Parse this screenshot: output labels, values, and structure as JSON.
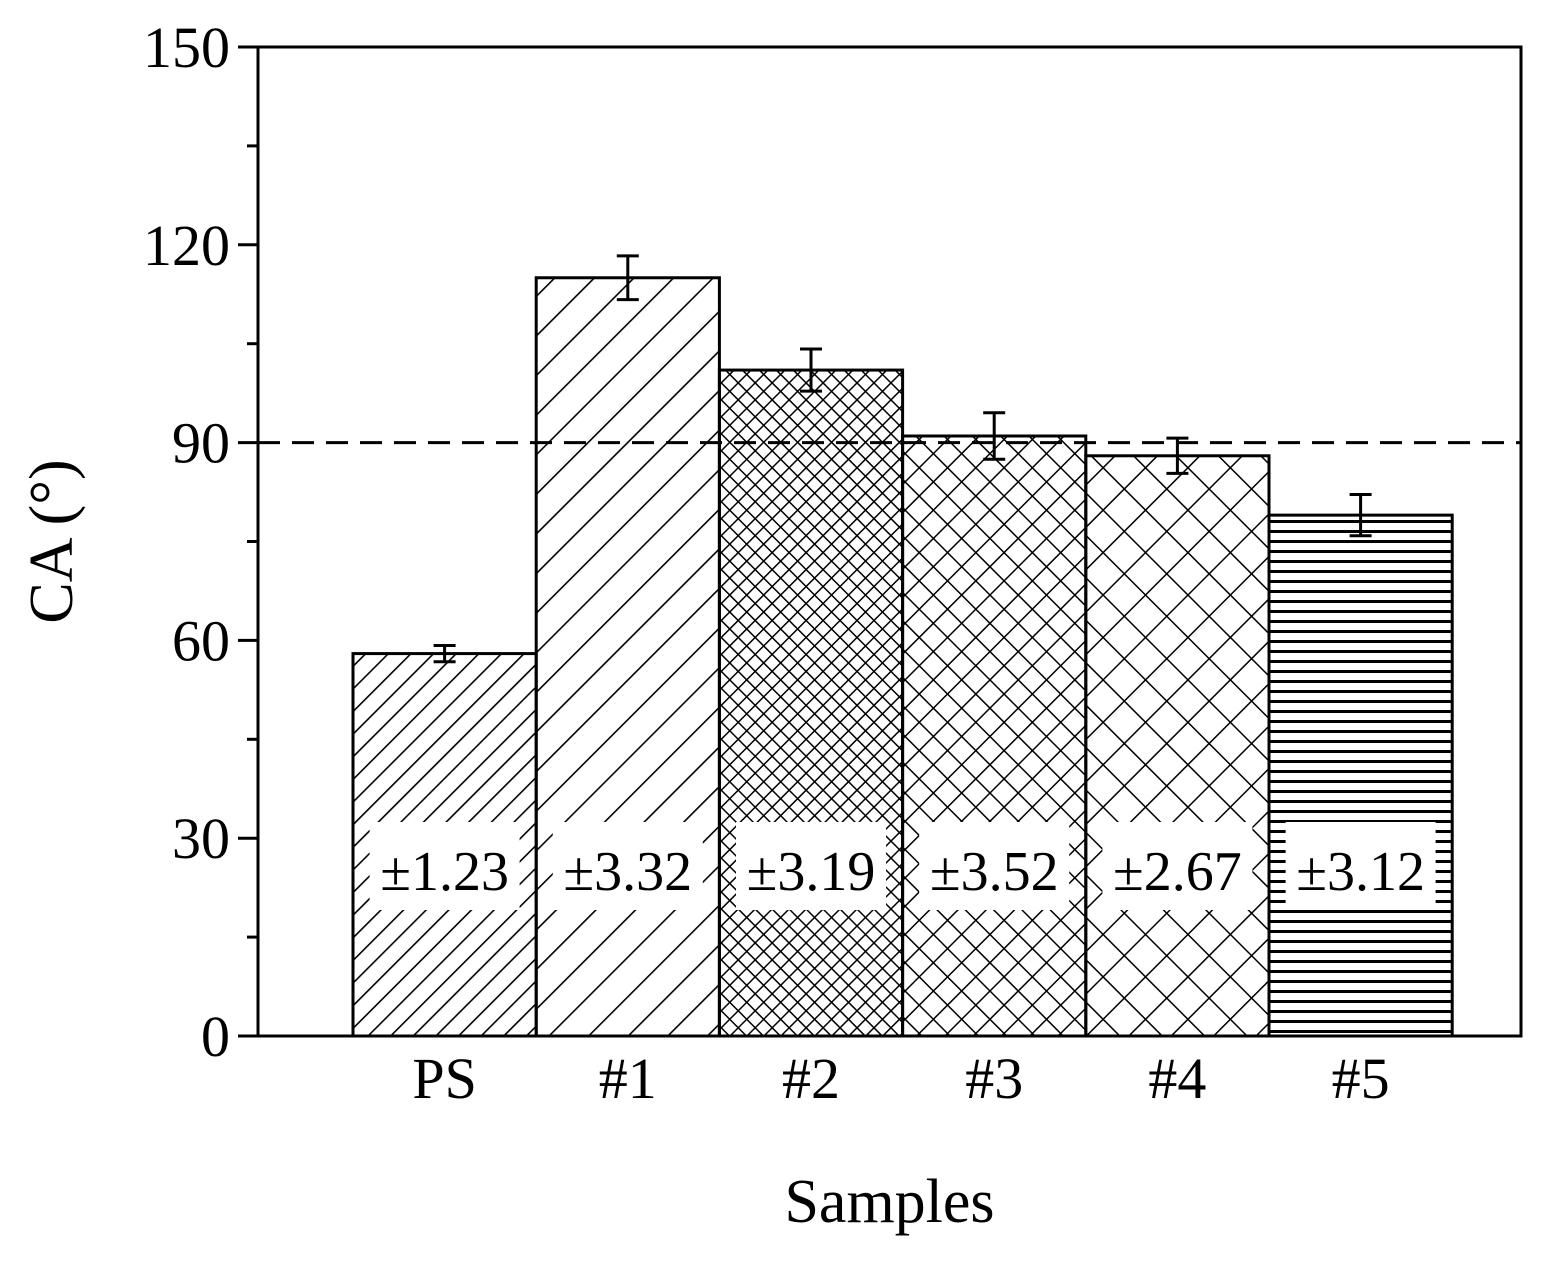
{
  "chart_data": {
    "type": "bar",
    "title": "",
    "xlabel": "Samples",
    "ylabel": "CA (°)",
    "categories": [
      "PS",
      "#1",
      "#2",
      "#3",
      "#4",
      "#5"
    ],
    "values": [
      58,
      115,
      101,
      91,
      88,
      79
    ],
    "error_labels": [
      "±1.23",
      "±3.32",
      "±3.19",
      "±3.52",
      "±2.67",
      "±3.12"
    ],
    "errors": [
      1.23,
      3.32,
      3.19,
      3.52,
      2.67,
      3.12
    ],
    "ylim": [
      0,
      150
    ],
    "yticks": [
      0,
      30,
      60,
      90,
      120,
      150
    ],
    "ytick_labels": [
      "0",
      "30",
      "60",
      "90",
      "120",
      "150"
    ],
    "reference_line": {
      "y": 90,
      "style": "dashed"
    },
    "grid": false,
    "bar_patterns": [
      "diagonal-dense",
      "diagonal-sparse",
      "crosshatch-fine",
      "crosshatch-medium",
      "crosshatch-coarse",
      "horizontal-lines"
    ],
    "colors": {
      "bar_fill": "#ffffff",
      "stroke": "#000000",
      "label_bg": "#ffffff"
    }
  }
}
